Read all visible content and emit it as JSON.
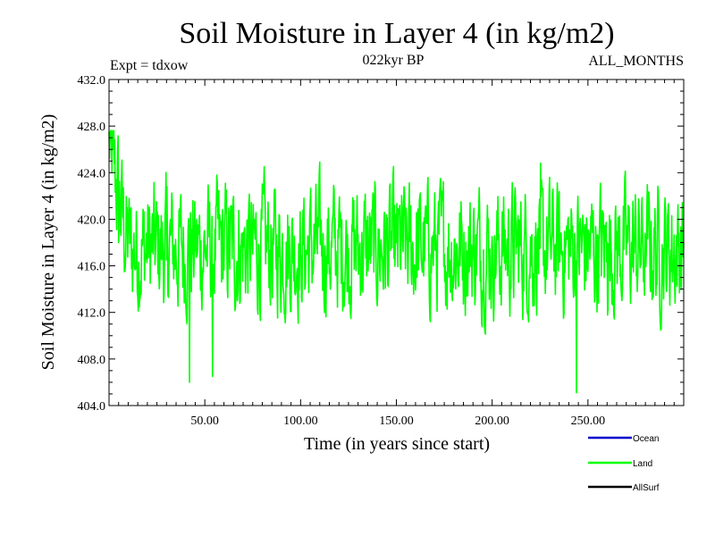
{
  "header": {
    "title": "Soil Moisture in Layer 4 (in kg/m2)",
    "subtitle_left": "Expt = tdxow",
    "subtitle_center": "022kyr BP",
    "subtitle_right": "ALL_MONTHS"
  },
  "legend": {
    "items": [
      {
        "label": "Ocean",
        "color": "#0000cc"
      },
      {
        "label": "Land",
        "color": "#00ff00"
      },
      {
        "label": "AllSurf",
        "color": "#000000"
      }
    ]
  },
  "chart_data": {
    "type": "line",
    "title": "Soil Moisture in Layer 4 (in kg/m2)",
    "xlabel": "Time (in years since start)",
    "ylabel": "Soil Moisture in Layer 4 (in kg/m2)",
    "xlim": [
      0,
      300
    ],
    "ylim": [
      404,
      432
    ],
    "xticks": [
      50,
      100,
      150,
      200,
      250
    ],
    "xtick_labels": [
      "50.00",
      "100.00",
      "150.00",
      "200.00",
      "250.00"
    ],
    "yticks": [
      404,
      408,
      412,
      416,
      420,
      424,
      428,
      432
    ],
    "ytick_labels": [
      "404.0",
      "408.0",
      "412.0",
      "416.0",
      "420.0",
      "424.0",
      "428.0",
      "432.0"
    ],
    "grid": false,
    "legend_position": "bottom-right",
    "series": [
      {
        "name": "Land",
        "color": "#00ff00",
        "x_start": 0,
        "x_step": 0.25,
        "approx_mean": 417.5,
        "approx_min": 405.1,
        "approx_max": 427.6,
        "key_values": [
          {
            "x": 0,
            "y": 427.5
          },
          {
            "x": 2,
            "y": 426.0
          },
          {
            "x": 5,
            "y": 418.0
          },
          {
            "x": 10,
            "y": 420.5
          },
          {
            "x": 20,
            "y": 417.0
          },
          {
            "x": 30,
            "y": 416.5
          },
          {
            "x": 42,
            "y": 406.0
          },
          {
            "x": 50,
            "y": 418.0
          },
          {
            "x": 54,
            "y": 406.5
          },
          {
            "x": 75,
            "y": 417.0
          },
          {
            "x": 100,
            "y": 416.5
          },
          {
            "x": 125,
            "y": 417.5
          },
          {
            "x": 150,
            "y": 418.0
          },
          {
            "x": 175,
            "y": 417.0
          },
          {
            "x": 200,
            "y": 418.5
          },
          {
            "x": 225,
            "y": 417.5
          },
          {
            "x": 244,
            "y": 405.1
          },
          {
            "x": 260,
            "y": 418.0
          },
          {
            "x": 280,
            "y": 417.0
          },
          {
            "x": 300,
            "y": 418.0
          }
        ]
      }
    ]
  }
}
